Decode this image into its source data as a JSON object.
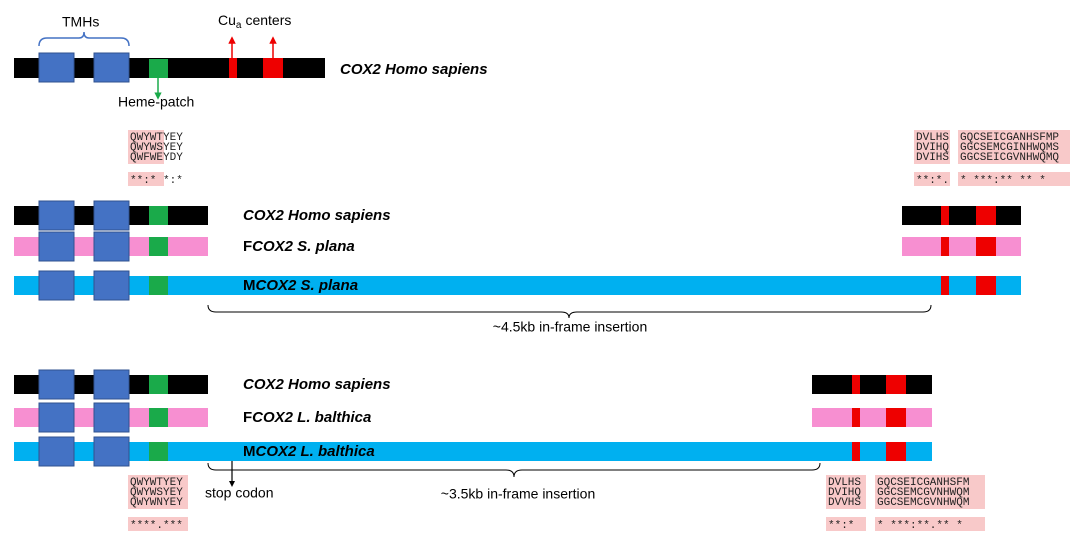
{
  "header": {
    "tmhs": "TMHs",
    "cu_base": "Cu",
    "cu_sub": "a",
    "cu_rest": "centers",
    "heme": "Heme-patch",
    "gene": "COX2 Homo sapiens"
  },
  "panel1": {
    "rows": [
      {
        "prefix": null,
        "name": "COX2 Homo sapiens"
      },
      {
        "prefix": "F",
        "name": "COX2 S. plana"
      },
      {
        "prefix": "M",
        "name": "COX2 S. plana"
      }
    ],
    "insertion": "~4.5kb in-frame insertion"
  },
  "panel2": {
    "rows": [
      {
        "prefix": null,
        "name": "COX2 Homo sapiens"
      },
      {
        "prefix": "F",
        "name": "COX2 L. balthica"
      },
      {
        "prefix": "M",
        "name": "COX2 L. balthica"
      }
    ],
    "insertion": "~3.5kb in-frame insertion",
    "stop": "stop codon"
  },
  "alignments": [
    {
      "lines": [
        "QWYWTYEY",
        "QWYWSYEY",
        "QWFWEYDY"
      ],
      "conservation": "**:* *:*"
    },
    {
      "lines": [
        "DVLHS",
        "DVIHQ",
        "DVIHS"
      ],
      "conservation": "**:*."
    },
    {
      "lines": [
        "GQCSEICGANHSFMP",
        "GGCSEMCGINHWQMS",
        "GGCSEICGVNHWQMQ"
      ],
      "conservation": "* ***:** **  *"
    },
    {
      "lines": [
        "QWYWTYEY",
        "QWYWSYEY",
        "QWYWNYEY"
      ],
      "conservation": "****.***"
    },
    {
      "lines": [
        "DVLHS",
        "DVIHQ",
        "DVVHS"
      ],
      "conservation": "**:*"
    },
    {
      "lines": [
        "GQCSEICGANHSFM",
        "GGCSEMCGVNHWQM",
        "GGCSEMCGVNHWQM"
      ],
      "conservation": "* ***:**.**  *"
    }
  ]
}
